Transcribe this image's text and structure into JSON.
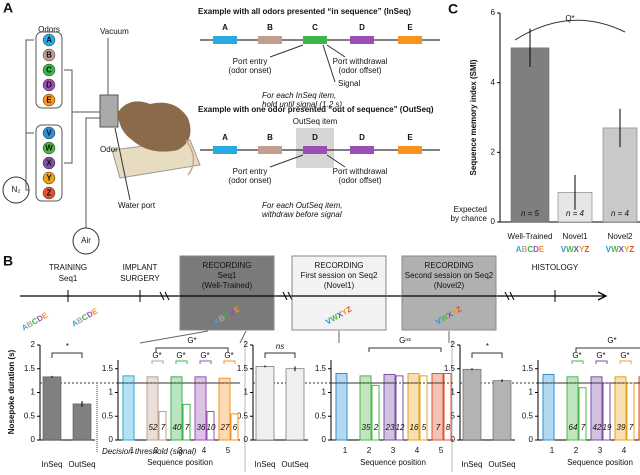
{
  "letter_colors": {
    "A": "#29abe2",
    "B": "#bfa08f",
    "C": "#39b54a",
    "D": "#9b4fb5",
    "E": "#f7931e",
    "V": "#2b8fd6",
    "W": "#4cb848",
    "X": "#7d4ea3",
    "Y": "#e8a21c",
    "Z": "#e2522b"
  },
  "panel_a": {
    "label": "A",
    "odors": "Odors",
    "n2": "N₂",
    "air": "Air",
    "vacuum": "Vacuum",
    "odor": "Odor",
    "water_port": "Water port",
    "manifold_top": [
      "A",
      "B",
      "C",
      "D",
      "E"
    ],
    "manifold_bottom": [
      "V",
      "W",
      "X",
      "Y",
      "Z"
    ],
    "inseq": {
      "title": "Example with all odors presented “in sequence” (InSeq)",
      "items": [
        "A",
        "B",
        "C",
        "D",
        "E"
      ],
      "entry": [
        "Port entry",
        "(odor onset)"
      ],
      "withdrawal": [
        "Port withdrawal",
        "(odor offset)"
      ],
      "signal": "Signal",
      "note": [
        "For each InSeq item,",
        "hold until signal (1.2 s)"
      ]
    },
    "outseq": {
      "title": "Example with one odor presented “out of sequence” (OutSeq)",
      "outseq_item": "OutSeq item",
      "items": [
        "A",
        "B",
        "D",
        "D",
        "E"
      ],
      "entry": [
        "Port entry",
        "(odor onset)"
      ],
      "withdrawal": [
        "Port withdrawal",
        "(odor offset)"
      ],
      "note": [
        "For each OutSeq item,",
        "withdraw before signal"
      ]
    }
  },
  "panel_b": {
    "label": "B",
    "training": [
      "TRAINING",
      "Seq1"
    ],
    "training_seqs": [
      "ABCDE",
      "ABCDE"
    ],
    "implant": [
      "IMPLANT",
      "SURGERY"
    ],
    "stages": [
      {
        "lines": [
          "RECORDING",
          "Seq1",
          "(Well-Trained)"
        ],
        "seq": "ABCDE"
      },
      {
        "lines": [
          "RECORDING",
          "First session on Seq2",
          "(Novel1)"
        ],
        "seq": "VWXYZ"
      },
      {
        "lines": [
          "RECORDING",
          "Second session on Seq2",
          "(Novel2)"
        ],
        "seq": "VWXYZ"
      }
    ],
    "histology": "HISTOLOGY"
  },
  "chart_data": [
    {
      "type": "smi_bar",
      "panel": "C",
      "ylabel": "Sequence memory index (SMI)",
      "categories": [
        "Well-Trained",
        "Novel1",
        "Novel2"
      ],
      "sequences": [
        "ABCDE",
        "VWXYZ",
        "VWXYZ"
      ],
      "values": [
        5.0,
        0.85,
        2.7
      ],
      "errors": [
        0.55,
        0.5,
        0.55
      ],
      "n_labels": [
        "n = 5",
        "n = 4",
        "n = 4"
      ],
      "colors": [
        "#7f7f7f",
        "#e6e6e6",
        "#c9c9c9"
      ],
      "ylim": [
        0,
        6
      ],
      "yticks": [
        0,
        2,
        4,
        6
      ],
      "chance_label": [
        "Expected",
        "by chance"
      ],
      "significance": "Q*"
    },
    {
      "type": "bar",
      "ylabel": "Nosepoke duration (s)",
      "categories": [
        "InSeq",
        "OutSeq"
      ],
      "values": [
        1.33,
        0.76
      ],
      "errors": [
        0.02,
        0.06
      ],
      "color": "#808080",
      "ylim": [
        0,
        2
      ],
      "yticks": [
        0,
        0.5,
        1,
        1.5,
        2
      ],
      "threshold": 1.2,
      "threshold_label": "Decision threshold (signal)",
      "significance": "*"
    },
    {
      "type": "bar",
      "categories": [
        "InSeq",
        "OutSeq"
      ],
      "values": [
        1.55,
        1.5
      ],
      "errors": [
        0.02,
        0.05
      ],
      "color": "#f0f0f0",
      "ylim": [
        0,
        2
      ],
      "yticks": [
        0,
        0.5,
        1,
        1.5,
        2
      ],
      "threshold": 1.2,
      "significance": "ns"
    },
    {
      "type": "bar",
      "categories": [
        "InSeq",
        "OutSeq"
      ],
      "values": [
        1.49,
        1.25
      ],
      "errors": [
        0.02,
        0.03
      ],
      "color": "#b3b3b3",
      "ylim": [
        0,
        2
      ],
      "yticks": [
        0,
        0.5,
        1,
        1.5,
        2
      ],
      "threshold": 1.2,
      "significance": "*"
    },
    {
      "type": "position_bar",
      "xlabel": "Sequence position",
      "categories": [
        1,
        2,
        3,
        4,
        5
      ],
      "position_colors": [
        "#29abe2",
        "#bfa08f",
        "#39b54a",
        "#9b4fb5",
        "#f7931e"
      ],
      "inseq_values": [
        1.35,
        1.33,
        1.33,
        1.33,
        1.3
      ],
      "outseq_values": [
        null,
        0.6,
        0.75,
        0.6,
        0.55
      ],
      "in_counts": [
        null,
        52,
        40,
        36,
        27
      ],
      "out_counts": [
        null,
        7,
        7,
        10,
        6
      ],
      "ylim": [
        0,
        2
      ],
      "yticks": [
        0,
        0.5,
        1,
        1.5
      ],
      "threshold": 1.2,
      "significance": "G*",
      "position_significance": [
        null,
        "G*",
        "G*",
        "G*",
        "G*"
      ]
    },
    {
      "type": "position_bar",
      "xlabel": "Sequence position",
      "categories": [
        1,
        2,
        3,
        4,
        5
      ],
      "position_colors": [
        "#2b8fd6",
        "#4cb848",
        "#7d4ea3",
        "#e8a21c",
        "#e2522b"
      ],
      "inseq_values": [
        1.4,
        1.35,
        1.38,
        1.4,
        1.4
      ],
      "outseq_values": [
        null,
        1.15,
        1.35,
        1.35,
        1.4
      ],
      "in_counts": [
        null,
        35,
        23,
        16,
        7
      ],
      "out_counts": [
        null,
        2,
        12,
        5,
        8
      ],
      "ylim": [
        0,
        2
      ],
      "yticks": [
        0,
        0.5,
        1,
        1.5
      ],
      "threshold": 1.2,
      "significance": "Gⁿˢ"
    },
    {
      "type": "position_bar",
      "xlabel": "Sequence position",
      "categories": [
        1,
        2,
        3,
        4,
        5
      ],
      "position_colors": [
        "#2b8fd6",
        "#4cb848",
        "#7d4ea3",
        "#e8a21c",
        "#e2522b"
      ],
      "inseq_values": [
        1.38,
        1.33,
        1.33,
        1.33,
        1.33
      ],
      "outseq_values": [
        null,
        1.1,
        1.2,
        1.2,
        1.15
      ],
      "in_counts": [
        null,
        64,
        42,
        39,
        28
      ],
      "out_counts": [
        null,
        7,
        19,
        7,
        11
      ],
      "ylim": [
        0,
        2
      ],
      "yticks": [
        0,
        0.5,
        1,
        1.5
      ],
      "threshold": 1.2,
      "significance": "G*",
      "position_significance": [
        null,
        "G*",
        "G*",
        "G*",
        "G*"
      ]
    }
  ]
}
